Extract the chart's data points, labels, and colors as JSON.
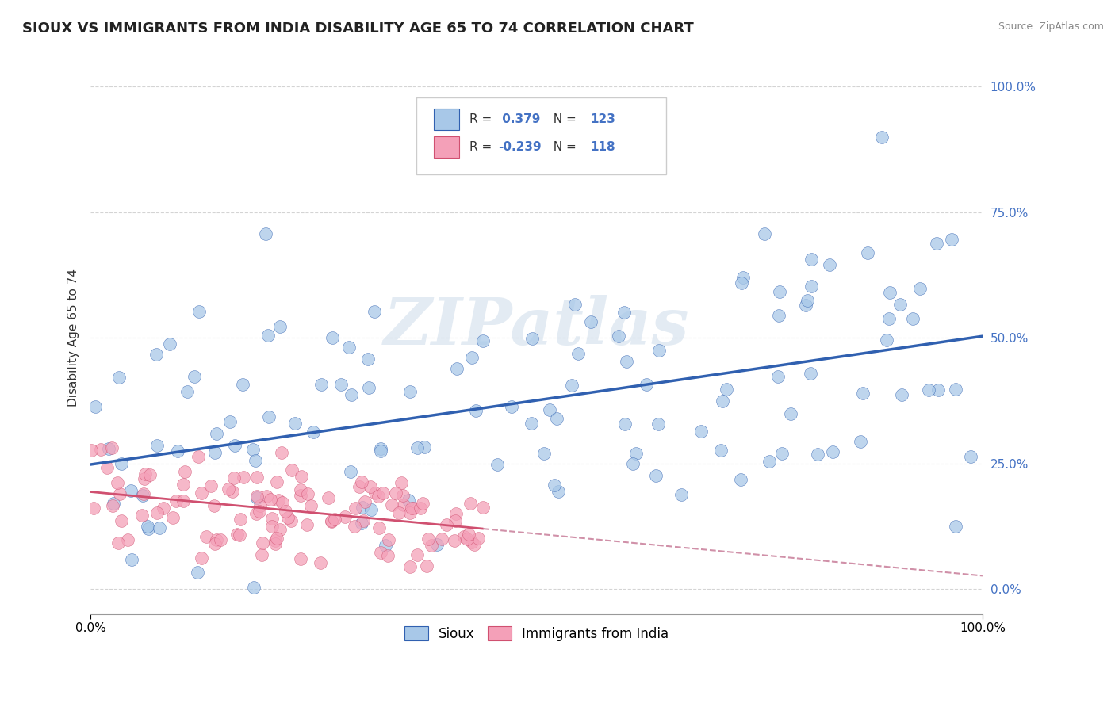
{
  "title": "SIOUX VS IMMIGRANTS FROM INDIA DISABILITY AGE 65 TO 74 CORRELATION CHART",
  "source": "Source: ZipAtlas.com",
  "ylabel": "Disability Age 65 to 74",
  "legend_label1": "Sioux",
  "legend_label2": "Immigrants from India",
  "r1": 0.379,
  "n1": 123,
  "r2": -0.239,
  "n2": 118,
  "color_sioux": "#a8c8e8",
  "color_india": "#f4a0b8",
  "color_sioux_line": "#3060b0",
  "color_india_line": "#d05070",
  "color_india_line_dash": "#d090a8",
  "watermark": "ZIPatlas",
  "bg_color": "#ffffff",
  "grid_color": "#d0d0d0",
  "xmin": 0.0,
  "xmax": 1.0,
  "ymin": -0.05,
  "ymax": 1.05,
  "sioux_seed": 42,
  "india_seed": 7,
  "title_fontsize": 13,
  "axis_label_fontsize": 11,
  "tick_fontsize": 11,
  "legend_r_color": "#4472c4",
  "legend_n_color": "#4472c4"
}
